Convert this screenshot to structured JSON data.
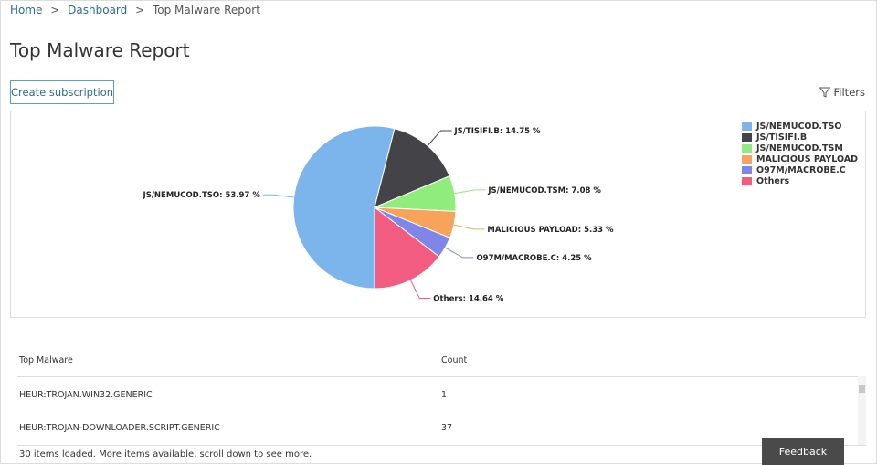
{
  "breadcrumb": {
    "items": [
      "Home",
      "Dashboard",
      "Top Malware Report"
    ],
    "separator": ">"
  },
  "page_title": "Top Malware Report",
  "toolbar": {
    "create_subscription": "Create subscription",
    "filters": "Filters",
    "filters_icon": "funnel-icon"
  },
  "chart_data": {
    "type": "pie",
    "start_angle_deg": 180,
    "legend_position": "top-right",
    "series": [
      {
        "name": "JS/NEMUCOD.TSO",
        "value": 53.97,
        "color": "#7cb5ec",
        "label": "JS/NEMUCOD.TSO: 53.97 %"
      },
      {
        "name": "JS/TISIFI.B",
        "value": 14.75,
        "color": "#434348",
        "label": "JS/TISIFI.B: 14.75 %"
      },
      {
        "name": "JS/NEMUCOD.TSM",
        "value": 7.08,
        "color": "#90ed7d",
        "label": "JS/NEMUCOD.TSM: 7.08 %"
      },
      {
        "name": "MALICIOUS PAYLOAD",
        "value": 5.33,
        "color": "#f7a35c",
        "label": "MALICIOUS PAYLOAD: 5.33 %"
      },
      {
        "name": "O97M/MACROBE.C",
        "value": 4.25,
        "color": "#8085e9",
        "label": "O97M/MACROBE.C: 4.25 %"
      },
      {
        "name": "Others",
        "value": 14.64,
        "color": "#f15c80",
        "label": "Others: 14.64 %"
      }
    ]
  },
  "table": {
    "columns": [
      "Top Malware",
      "Count"
    ],
    "rows": [
      [
        "HEUR:TROJAN.WIN32.GENERIC",
        "1"
      ],
      [
        "HEUR:TROJAN-DOWNLOADER.SCRIPT.GENERIC",
        "37"
      ]
    ],
    "status": "30 items loaded. More items available, scroll down to see more."
  },
  "feedback_label": "Feedback"
}
